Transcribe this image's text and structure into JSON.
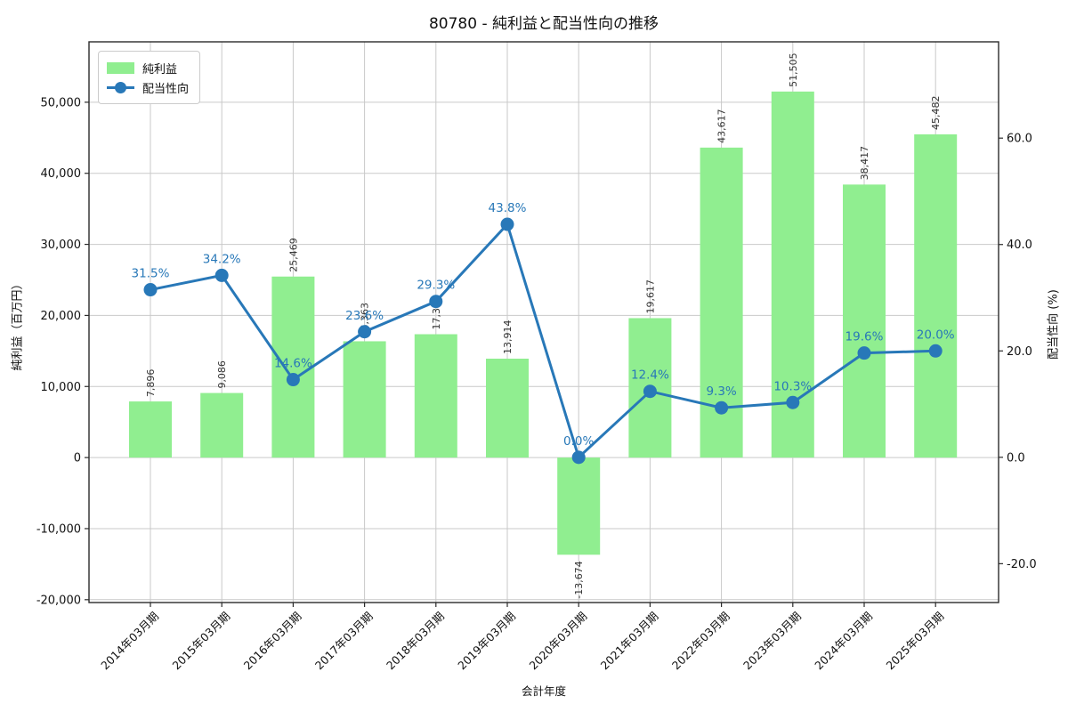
{
  "title": "80780 - 純利益と配当性向の推移",
  "colors": {
    "bar": "#90ee90",
    "line": "#2878b8",
    "grid": "#c9c9c9",
    "spine": "#2b2b2b",
    "text": "#111111",
    "bar_label": "#333333",
    "background": "#ffffff"
  },
  "legend": {
    "items": [
      {
        "label": "純利益",
        "marker": "bar-swatch"
      },
      {
        "label": "配当性向",
        "marker": "line-dot"
      }
    ]
  },
  "chart_data": {
    "type": "bar",
    "overlay_type": "line",
    "title": "80780 - 純利益と配当性向の推移",
    "xlabel": "会計年度",
    "ylabel_left": "純利益（百万円）",
    "ylabel_right": "配当性向 (%)",
    "categories": [
      "2014年03月期",
      "2015年03月期",
      "2016年03月期",
      "2017年03月期",
      "2018年03月期",
      "2019年03月期",
      "2020年03月期",
      "2021年03月期",
      "2022年03月期",
      "2023年03月期",
      "2024年03月期",
      "2025年03月期"
    ],
    "series": [
      {
        "name": "純利益",
        "type": "bar",
        "axis": "left",
        "unit": "百万円",
        "color": "#90ee90",
        "values": [
          7896,
          9086,
          25469,
          16363,
          17356,
          13914,
          -13674,
          19617,
          43617,
          51505,
          38417,
          45482
        ]
      },
      {
        "name": "配当性向",
        "type": "line",
        "axis": "right",
        "unit": "%",
        "color": "#2878b8",
        "values": [
          31.5,
          34.2,
          14.6,
          23.6,
          29.3,
          43.8,
          0.0,
          12.4,
          9.3,
          10.3,
          19.6,
          20.0
        ]
      }
    ],
    "left_ticks": [
      -20000,
      -10000,
      0,
      10000,
      20000,
      30000,
      40000,
      50000
    ],
    "right_ticks": [
      -20.0,
      0.0,
      20.0,
      40.0,
      60.0
    ],
    "ylim_left": [
      -20400,
      58500
    ],
    "ylim_right": [
      -27.3,
      78.1
    ],
    "grid": true,
    "legend_position": "upper left"
  }
}
